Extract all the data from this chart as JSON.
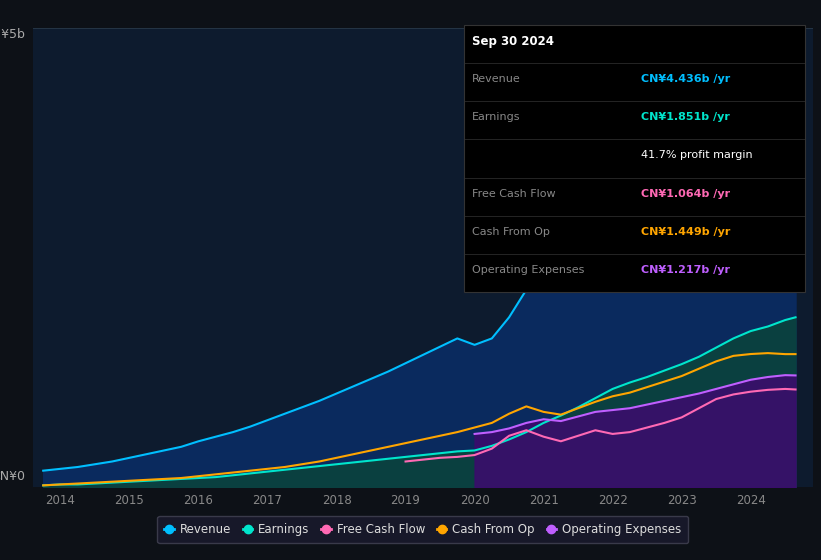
{
  "bg_color": "#0d1117",
  "plot_bg_color": "#0d1b2e",
  "grid_color": "#253545",
  "info_box": {
    "date": "Sep 30 2024",
    "rows": [
      {
        "label": "Revenue",
        "value": "CN¥4.436b /yr",
        "value_color": "#00bfff",
        "bold_value": true
      },
      {
        "label": "Earnings",
        "value": "CN¥1.851b /yr",
        "value_color": "#00e5cc",
        "bold_value": true
      },
      {
        "label": "",
        "value": "41.7% profit margin",
        "value_color": "#ffffff",
        "bold_value": false
      },
      {
        "label": "Free Cash Flow",
        "value": "CN¥1.064b /yr",
        "value_color": "#ff69b4",
        "bold_value": true
      },
      {
        "label": "Cash From Op",
        "value": "CN¥1.449b /yr",
        "value_color": "#ffa500",
        "bold_value": true
      },
      {
        "label": "Operating Expenses",
        "value": "CN¥1.217b /yr",
        "value_color": "#bf5fff",
        "bold_value": true
      }
    ]
  },
  "legend": [
    {
      "label": "Revenue",
      "color": "#00bfff"
    },
    {
      "label": "Earnings",
      "color": "#00e5cc"
    },
    {
      "label": "Free Cash Flow",
      "color": "#ff69b4"
    },
    {
      "label": "Cash From Op",
      "color": "#ffa500"
    },
    {
      "label": "Operating Expenses",
      "color": "#bf5fff"
    }
  ],
  "years": [
    2013.75,
    2014.0,
    2014.25,
    2014.5,
    2014.75,
    2015.0,
    2015.25,
    2015.5,
    2015.75,
    2016.0,
    2016.25,
    2016.5,
    2016.75,
    2017.0,
    2017.25,
    2017.5,
    2017.75,
    2018.0,
    2018.25,
    2018.5,
    2018.75,
    2019.0,
    2019.25,
    2019.5,
    2019.75,
    2020.0,
    2020.25,
    2020.5,
    2020.75,
    2021.0,
    2021.25,
    2021.5,
    2021.75,
    2022.0,
    2022.25,
    2022.5,
    2022.75,
    2023.0,
    2023.25,
    2023.5,
    2023.75,
    2024.0,
    2024.25,
    2024.5,
    2024.65
  ],
  "revenue": [
    0.18,
    0.2,
    0.22,
    0.25,
    0.28,
    0.32,
    0.36,
    0.4,
    0.44,
    0.5,
    0.55,
    0.6,
    0.66,
    0.73,
    0.8,
    0.87,
    0.94,
    1.02,
    1.1,
    1.18,
    1.26,
    1.35,
    1.44,
    1.53,
    1.62,
    1.55,
    1.62,
    1.85,
    2.15,
    2.45,
    2.65,
    2.82,
    2.98,
    3.12,
    3.22,
    3.32,
    3.42,
    3.52,
    3.67,
    3.82,
    3.97,
    4.12,
    4.22,
    4.37,
    4.44
  ],
  "earnings": [
    0.02,
    0.03,
    0.03,
    0.04,
    0.05,
    0.06,
    0.07,
    0.08,
    0.09,
    0.1,
    0.11,
    0.13,
    0.15,
    0.17,
    0.19,
    0.21,
    0.23,
    0.25,
    0.27,
    0.29,
    0.31,
    0.33,
    0.35,
    0.37,
    0.39,
    0.4,
    0.45,
    0.52,
    0.6,
    0.7,
    0.78,
    0.87,
    0.97,
    1.07,
    1.14,
    1.2,
    1.27,
    1.34,
    1.42,
    1.52,
    1.62,
    1.7,
    1.75,
    1.82,
    1.85
  ],
  "free_cash_flow": [
    null,
    null,
    null,
    null,
    null,
    null,
    null,
    null,
    null,
    null,
    null,
    null,
    null,
    null,
    null,
    null,
    null,
    null,
    null,
    null,
    null,
    0.28,
    0.3,
    0.32,
    0.33,
    0.35,
    0.42,
    0.56,
    0.62,
    0.55,
    0.5,
    0.56,
    0.62,
    0.58,
    0.6,
    0.65,
    0.7,
    0.76,
    0.86,
    0.96,
    1.01,
    1.04,
    1.06,
    1.07,
    1.064
  ],
  "cash_from_op": [
    0.02,
    0.03,
    0.04,
    0.05,
    0.06,
    0.07,
    0.08,
    0.09,
    0.1,
    0.12,
    0.14,
    0.16,
    0.18,
    0.2,
    0.22,
    0.25,
    0.28,
    0.32,
    0.36,
    0.4,
    0.44,
    0.48,
    0.52,
    0.56,
    0.6,
    0.65,
    0.7,
    0.8,
    0.88,
    0.82,
    0.79,
    0.86,
    0.93,
    0.99,
    1.03,
    1.09,
    1.15,
    1.21,
    1.29,
    1.37,
    1.43,
    1.45,
    1.46,
    1.449,
    1.449
  ],
  "op_expenses": [
    null,
    null,
    null,
    null,
    null,
    null,
    null,
    null,
    null,
    null,
    null,
    null,
    null,
    null,
    null,
    null,
    null,
    null,
    null,
    null,
    null,
    null,
    null,
    null,
    null,
    0.58,
    0.6,
    0.64,
    0.7,
    0.74,
    0.72,
    0.77,
    0.82,
    0.84,
    0.86,
    0.9,
    0.94,
    0.98,
    1.02,
    1.07,
    1.12,
    1.17,
    1.2,
    1.22,
    1.217
  ],
  "xlim": [
    2013.6,
    2024.9
  ],
  "ylim": [
    0,
    5.0
  ],
  "xticks": [
    2014,
    2015,
    2016,
    2017,
    2018,
    2019,
    2020,
    2021,
    2022,
    2023,
    2024
  ]
}
